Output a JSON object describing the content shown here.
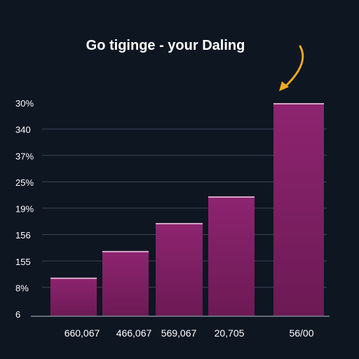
{
  "chart_data": {
    "type": "bar",
    "title": "Go tiginge - your Daling",
    "xlabel": "",
    "ylabel": "",
    "y_tick_labels": [
      "30%",
      "340",
      "37%",
      "25%",
      "19%",
      "156",
      "155",
      "8%",
      "6"
    ],
    "categories": [
      "660,067",
      "466,067",
      "569,067",
      "20,705",
      "56/00"
    ],
    "values": [
      1.45,
      2.45,
      3.5,
      4.5,
      8
    ],
    "ylim": [
      0,
      8
    ],
    "grid": true,
    "legend": "none",
    "colors": {
      "background": "#0e1622",
      "bar_top": "#8e2470",
      "bar_bottom": "#6c1a54",
      "bar_highlight": "#e6c6dc",
      "grid": "#3a4656",
      "arrow": "#f0a822",
      "text": "#ffffff"
    },
    "annotation": {
      "icon": "curved-arrow-icon",
      "points_to": "56/00"
    }
  }
}
